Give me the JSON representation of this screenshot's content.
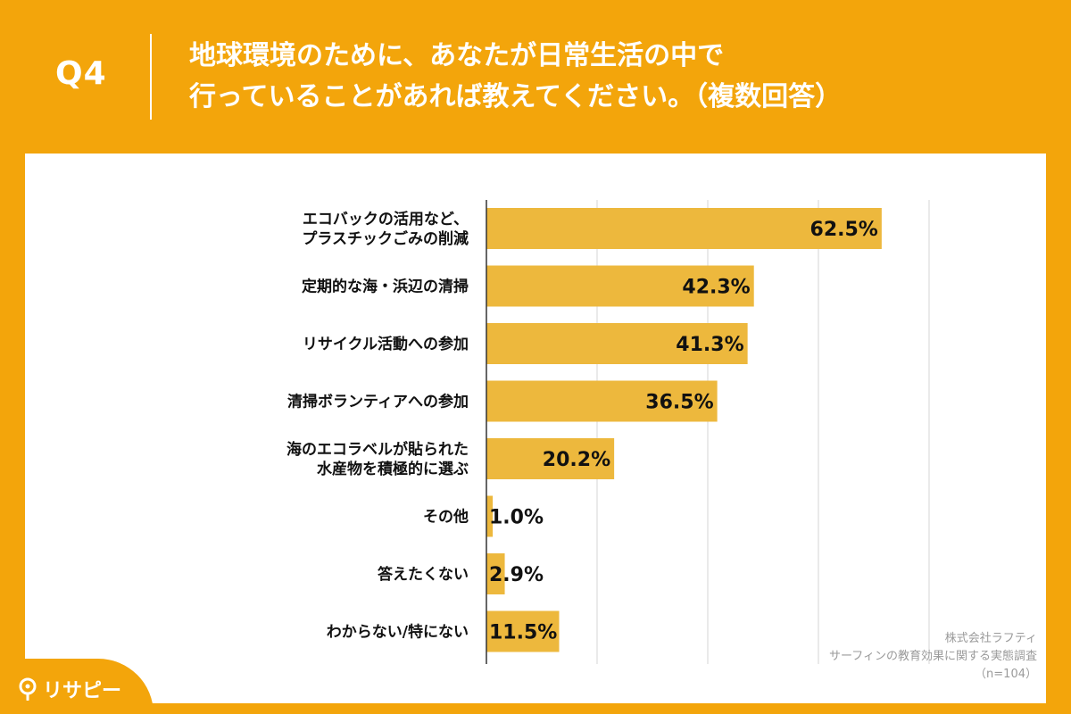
{
  "header": {
    "question_number": "Q4",
    "title_line1": "地球環境のために、あなたが日常生活の中で",
    "title_line2": "行っていることがあれば教えてください。（複数回答）"
  },
  "source": {
    "company": "株式会社ラフティ",
    "survey": "サーフィンの教育効果に関する実態調査",
    "sample": "（n=104）"
  },
  "brand": {
    "logo_text": "リサピー"
  },
  "colors": {
    "accent": "#F3A50B",
    "bar": "#EDB83D",
    "grid": "#d6d6d6",
    "text": "#111111"
  },
  "chart_data": {
    "type": "bar",
    "orientation": "horizontal",
    "categories": [
      [
        "エコバックの活用など、",
        "プラスチックごみの削減"
      ],
      [
        "定期的な海・浜辺の清掃"
      ],
      [
        "リサイクル活動への参加"
      ],
      [
        "清掃ボランティアへの参加"
      ],
      [
        "海のエコラベルが貼られた",
        "水産物を積極的に選ぶ"
      ],
      [
        "その他"
      ],
      [
        "答えたくない"
      ],
      [
        "わからない/特にない"
      ]
    ],
    "values": [
      62.5,
      42.3,
      41.3,
      36.5,
      20.2,
      1.0,
      2.9,
      11.5
    ],
    "value_labels": [
      "62.5%",
      "42.3%",
      "41.3%",
      "36.5%",
      "20.2%",
      "1.0%",
      "2.9%",
      "11.5%"
    ],
    "xlim": [
      0,
      70
    ],
    "grid_step": 17.5,
    "unit": "%"
  }
}
